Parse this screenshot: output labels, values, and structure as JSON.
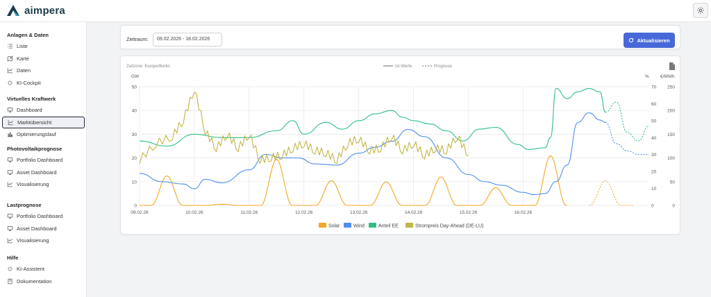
{
  "app": {
    "name": "aimpera"
  },
  "icons": {
    "settings": "gear-icon",
    "refresh": "refresh-icon",
    "export": "document-icon"
  },
  "colors": {
    "solar": "#f5a623",
    "wind": "#4f8ef0",
    "anteil_ee": "#2fbf85",
    "strompreis": "#c2b545",
    "accent": "#4668d8"
  },
  "sidebar": {
    "sections": [
      {
        "title": "Anlagen & Daten",
        "items": [
          {
            "label": "Liste",
            "icon": "list-icon"
          },
          {
            "label": "Karte",
            "icon": "map-icon"
          },
          {
            "label": "Daten",
            "icon": "chart-icon"
          },
          {
            "label": "KI-Cockpit",
            "icon": "sparkle-icon"
          }
        ]
      },
      {
        "title": "Virtuelles Kraftwerk",
        "items": [
          {
            "label": "Dashboard",
            "icon": "monitor-icon"
          },
          {
            "label": "Marktübersicht",
            "icon": "chart-icon",
            "active": true
          },
          {
            "label": "Optimierungslauf",
            "icon": "bar-chart-icon"
          }
        ]
      },
      {
        "title": "Photovoltaikprognose",
        "items": [
          {
            "label": "Portfolio Dashboard",
            "icon": "monitor-icon"
          },
          {
            "label": "Asset Dashboard",
            "icon": "monitor-icon"
          },
          {
            "label": "Visualisierung",
            "icon": "chart-icon"
          }
        ]
      },
      {
        "title": "Lastprognose",
        "items": [
          {
            "label": "Portfolio Dashboard",
            "icon": "monitor-icon"
          },
          {
            "label": "Asset Dashboard",
            "icon": "monitor-icon"
          },
          {
            "label": "Visualisierung",
            "icon": "chart-icon"
          }
        ]
      },
      {
        "title": "Hilfe",
        "items": [
          {
            "label": "KI-Assistent",
            "icon": "sparkle-icon"
          },
          {
            "label": "Dokumentation",
            "icon": "book-icon"
          }
        ]
      }
    ]
  },
  "filter": {
    "label": "Zeitraum:",
    "value": "09.02.2026 - 18.02.2026",
    "button": "Aktualisieren"
  },
  "chart_data": {
    "type": "line",
    "timezone": "Zeitzone: Europe/Berlin",
    "line_styles": [
      {
        "name": "Ist-Werte",
        "dash": false
      },
      {
        "name": "Prognose",
        "dash": true
      }
    ],
    "x": {
      "labels": [
        "09.02.26",
        "10.02.26",
        "11.02.26",
        "12.02.26",
        "13.02.26",
        "14.02.26",
        "15.02.26",
        "16.02.26"
      ],
      "range": [
        0,
        9.3
      ]
    },
    "axes": {
      "left": {
        "unit": "GW",
        "range": [
          0,
          50
        ],
        "ticks": [
          0,
          10,
          20,
          30,
          40,
          50
        ]
      },
      "right1": {
        "unit": "%",
        "range": [
          0,
          70
        ],
        "ticks": [
          0,
          10,
          20,
          30,
          40,
          50,
          60,
          70
        ]
      },
      "right2": {
        "unit": "€/MWh",
        "range": [
          0,
          250
        ],
        "ticks": [
          0,
          50,
          100,
          150,
          200,
          250
        ]
      }
    },
    "grid": true,
    "legend_position": "bottom",
    "series": [
      {
        "name": "Solar",
        "axis": "left",
        "color": "#f5a623",
        "peaks": [
          [
            0.5,
            12.5
          ],
          [
            1.5,
            0.5
          ],
          [
            2.5,
            19.5
          ],
          [
            3.5,
            10.5
          ],
          [
            4.5,
            10
          ],
          [
            5.5,
            12
          ],
          [
            6.5,
            7.5
          ],
          [
            7.5,
            21
          ]
        ],
        "forecast_peaks": [
          [
            8.5,
            10.5
          ]
        ]
      },
      {
        "name": "Wind",
        "axis": "left",
        "color": "#4f8ef0",
        "x": [
          0,
          0.4,
          0.8,
          1.0,
          1.2,
          1.5,
          2.0,
          2.3,
          2.6,
          2.9,
          3.2,
          3.6,
          4.0,
          4.3,
          4.6,
          4.9,
          5.2,
          5.6,
          6.0,
          6.3,
          6.6,
          7.0,
          7.2,
          7.4,
          7.6,
          7.8,
          8.0,
          8.2,
          8.4,
          8.5
        ],
        "values": [
          13.5,
          10,
          9,
          7,
          11,
          9.5,
          15,
          21.5,
          20,
          20,
          17.5,
          17,
          22,
          24.5,
          27,
          32,
          29,
          20,
          13,
          10,
          8.5,
          5.5,
          4.5,
          5,
          10,
          17,
          35,
          39,
          36,
          35
        ],
        "forecast_x": [
          8.5,
          8.7,
          8.9,
          9.1,
          9.3
        ],
        "forecast_values": [
          35,
          26,
          23,
          21.5,
          21.5
        ]
      },
      {
        "name": "Anteil EE",
        "axis": "right1",
        "color": "#2fbf85",
        "x": [
          0,
          0.5,
          1.0,
          1.5,
          2.0,
          2.5,
          2.8,
          3.0,
          3.4,
          3.7,
          4.0,
          4.3,
          4.6,
          4.8,
          5.0,
          5.3,
          5.6,
          5.9,
          6.2,
          6.5,
          6.9,
          7.1,
          7.4,
          7.5,
          7.6,
          7.8,
          8.0,
          8.2,
          8.4,
          8.5
        ],
        "values": [
          38,
          35,
          42,
          40,
          40,
          44,
          50,
          42,
          49,
          45,
          50,
          54,
          56,
          52,
          50,
          48,
          44,
          38,
          45,
          46,
          36,
          33,
          34,
          40,
          69,
          63,
          67,
          69,
          67,
          55
        ],
        "forecast_x": [
          8.5,
          8.7,
          8.9,
          9.1,
          9.3
        ],
        "forecast_values": [
          55,
          61,
          43,
          38,
          47
        ]
      },
      {
        "name": "Strompreis Day-Ahead (DE-LU)",
        "axis": "right2",
        "color": "#c2b545",
        "x": [
          0,
          0.3,
          0.6,
          0.8,
          1.0,
          1.2,
          1.4,
          1.6,
          1.8,
          2.0,
          2.2,
          2.4,
          2.6,
          2.8,
          3.0,
          3.2,
          3.4,
          3.6,
          3.8,
          4.0,
          4.2,
          4.4,
          4.6,
          4.8,
          5.0,
          5.2,
          5.4,
          5.6,
          5.8,
          6.0
        ],
        "values": [
          95,
          130,
          145,
          180,
          245,
          155,
          120,
          150,
          120,
          150,
          95,
          100,
          105,
          120,
          130,
          115,
          110,
          95,
          130,
          140,
          115,
          120,
          145,
          115,
          130,
          105,
          120,
          115,
          145,
          105
        ]
      }
    ]
  }
}
